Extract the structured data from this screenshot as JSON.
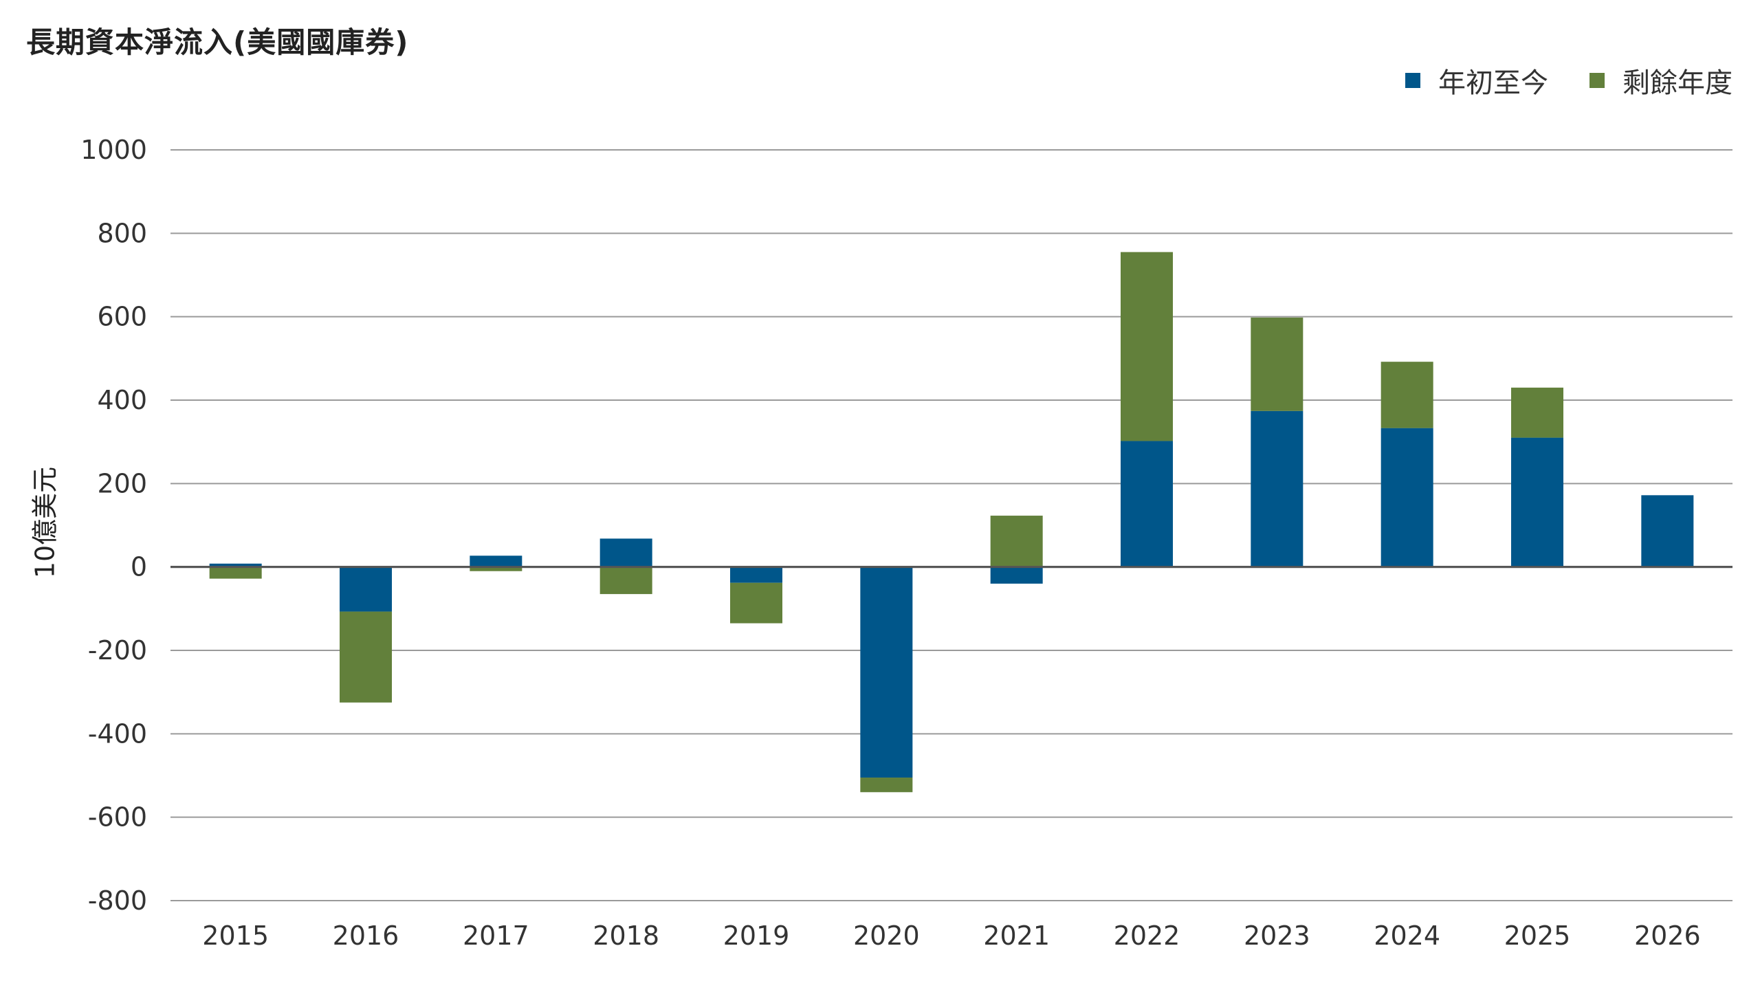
{
  "chart_data": {
    "type": "bar",
    "stacked": true,
    "title": "長期資本淨流入(美國國庫券)",
    "ylabel": "10億美元",
    "xlabel": "",
    "categories": [
      "2015",
      "2016",
      "2017",
      "2018",
      "2019",
      "2020",
      "2021",
      "2022",
      "2023",
      "2024",
      "2025",
      "2026"
    ],
    "series": [
      {
        "name": "年初至今",
        "color": "#00568a",
        "values": [
          8,
          -107,
          27,
          68,
          -38,
          -505,
          -40,
          302,
          374,
          333,
          310,
          172
        ]
      },
      {
        "name": "剩餘年度",
        "color": "#62803b",
        "values": [
          -28,
          -218,
          -10,
          -65,
          -97,
          -35,
          123,
          453,
          224,
          159,
          120,
          0
        ]
      }
    ],
    "ylim": [
      -800,
      1000
    ],
    "yticks": [
      "1000",
      "800",
      "600",
      "400",
      "200",
      "0",
      "-200",
      "-400",
      "-600",
      "-800"
    ],
    "grid": true,
    "legend_position": "top-right"
  }
}
